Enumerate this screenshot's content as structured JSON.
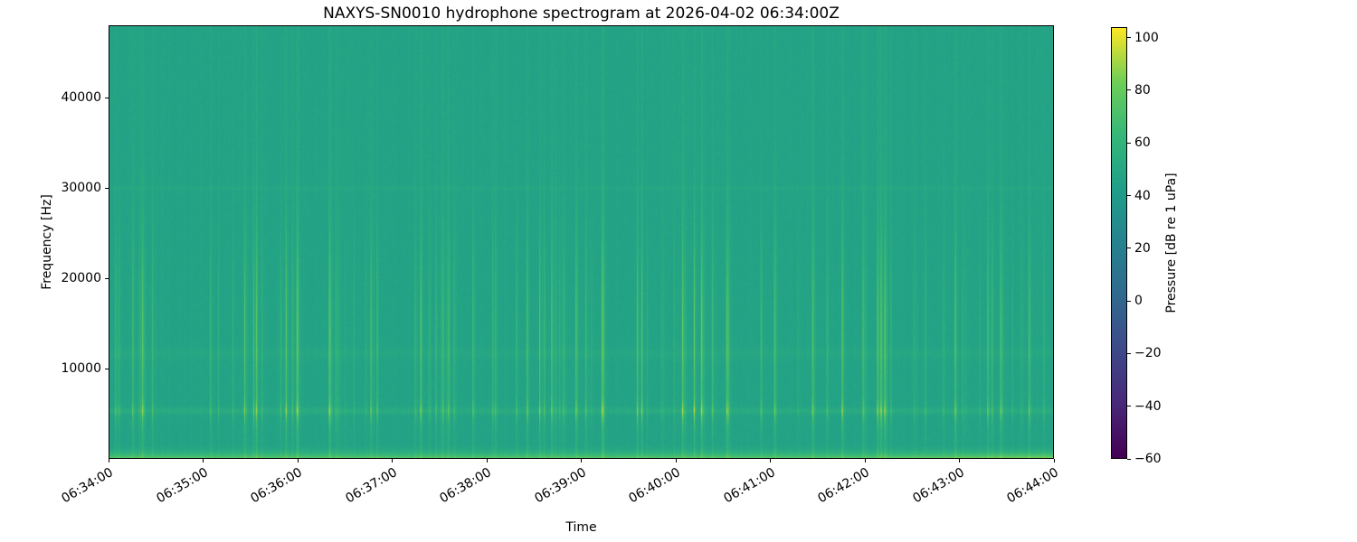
{
  "chart_data": {
    "type": "heatmap",
    "title": "NAXYS-SN0010 hydrophone spectrogram at 2026-04-02 06:34:00Z",
    "xlabel": "Time",
    "ylabel": "Frequency [Hz]",
    "x_ticks": [
      "06:34:00",
      "06:35:00",
      "06:36:00",
      "06:37:00",
      "06:38:00",
      "06:39:00",
      "06:40:00",
      "06:41:00",
      "06:42:00",
      "06:43:00",
      "06:44:00"
    ],
    "y_ticks": [
      10000,
      20000,
      30000,
      40000
    ],
    "y_tick_labels": [
      "10000",
      "20000",
      "30000",
      "40000"
    ],
    "y_range": [
      0,
      48000
    ],
    "grid": false,
    "legend": "none",
    "colormap": "viridis",
    "colorbar": {
      "label": "Pressure [dB re 1 uPa]",
      "vmin": -60,
      "vmax": 104,
      "ticks": [
        100,
        80,
        60,
        40,
        20,
        0,
        -20,
        -40,
        -60
      ],
      "tick_labels": [
        "100",
        "80",
        "60",
        "40",
        "20",
        "0",
        "−20",
        "−40",
        "−60"
      ]
    },
    "colormap_stops": [
      [
        0.0,
        "#440154"
      ],
      [
        0.125,
        "#482878"
      ],
      [
        0.25,
        "#3e4989"
      ],
      [
        0.375,
        "#31688e"
      ],
      [
        0.5,
        "#26828e"
      ],
      [
        0.625,
        "#1f9e89"
      ],
      [
        0.75,
        "#35b779"
      ],
      [
        0.875,
        "#6ece58"
      ],
      [
        1.0,
        "#fde725"
      ]
    ],
    "spectrogram": {
      "cols": 1045,
      "rows": 480,
      "seed": 20260402,
      "background_db": 47,
      "pixel_noise_db": 2.2,
      "column_noise_db": 1.1,
      "transient_density": 0.11,
      "transient_min_db": 4,
      "transient_max_db": 30,
      "transient_envelope": {
        "floor": 0.18,
        "center_hz": 13500,
        "sigma_hz": 8000,
        "tonal_center_hz": 5200,
        "tonal_sigma_hz": 900,
        "tonal_boost": 0.75
      },
      "bands": [
        {
          "name": "surface-noise",
          "type": "low",
          "cutoff_hz": 1700,
          "gain_db": 26,
          "exp": 2.5
        },
        {
          "name": "tonal-5khz",
          "type": "gauss",
          "center_hz": 5200,
          "sigma_hz": 260,
          "gain_db": 6
        },
        {
          "name": "band-11-5khz",
          "type": "gauss",
          "center_hz": 11600,
          "sigma_hz": 500,
          "gain_db": 2.5
        },
        {
          "name": "line-30khz",
          "type": "gauss",
          "center_hz": 30000,
          "sigma_hz": 160,
          "gain_db": 2.5
        }
      ],
      "low_band_ramp": {
        "start": 0.8,
        "gain": 0.35
      }
    }
  }
}
